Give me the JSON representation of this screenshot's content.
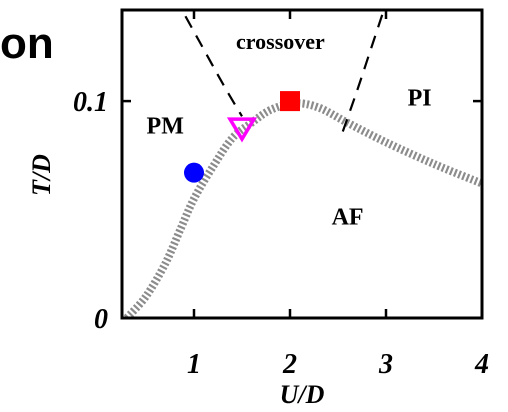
{
  "chart_data": {
    "type": "scatter",
    "partial_title": "on",
    "xlabel": "U/D",
    "ylabel": "T/D",
    "xlim": [
      0.25,
      4.0
    ],
    "ylim": [
      0.0,
      0.142
    ],
    "x_ticks": [
      {
        "value": 1,
        "label": "1"
      },
      {
        "value": 2,
        "label": "2"
      },
      {
        "value": 3,
        "label": "3"
      },
      {
        "value": 4,
        "label": "4"
      }
    ],
    "y_ticks": [
      {
        "value": 0,
        "label": "0"
      },
      {
        "value": 0.1,
        "label": "0.1"
      }
    ],
    "region_labels": [
      {
        "text": "crossover",
        "x": 1.9,
        "y": 0.124
      },
      {
        "text": "PM",
        "x": 0.7,
        "y": 0.085
      },
      {
        "text": "PI",
        "x": 3.35,
        "y": 0.098
      },
      {
        "text": "AF",
        "x": 2.6,
        "y": 0.043
      }
    ],
    "series": [
      {
        "style": "dotted-thick",
        "color": "#8c8c8c",
        "points": [
          [
            0.3,
            0.0
          ],
          [
            0.5,
            0.01
          ],
          [
            0.7,
            0.025
          ],
          [
            0.85,
            0.04
          ],
          [
            1.0,
            0.055
          ],
          [
            1.2,
            0.07
          ],
          [
            1.4,
            0.083
          ],
          [
            1.6,
            0.09
          ],
          [
            1.8,
            0.096
          ],
          [
            2.05,
            0.099
          ],
          [
            2.3,
            0.097
          ],
          [
            2.6,
            0.09
          ],
          [
            3.0,
            0.081
          ],
          [
            3.5,
            0.071
          ],
          [
            4.0,
            0.062
          ]
        ]
      },
      {
        "style": "dashed",
        "color": "#000000",
        "points": [
          [
            0.8,
            0.148
          ],
          [
            1.05,
            0.128
          ],
          [
            1.3,
            0.108
          ],
          [
            1.5,
            0.093
          ]
        ]
      },
      {
        "style": "dashed",
        "color": "#000000",
        "points": [
          [
            2.55,
            0.086
          ],
          [
            2.7,
            0.105
          ],
          [
            2.85,
            0.125
          ],
          [
            3.0,
            0.145
          ]
        ]
      }
    ],
    "markers": [
      {
        "shape": "circle",
        "x": 1.0,
        "y": 0.067,
        "color": "#0000ff"
      },
      {
        "shape": "triangle-down-open",
        "x": 1.5,
        "y": 0.088,
        "color": "#ff00ff"
      },
      {
        "shape": "square",
        "x": 2.0,
        "y": 0.1,
        "color": "#ff0000"
      }
    ]
  }
}
